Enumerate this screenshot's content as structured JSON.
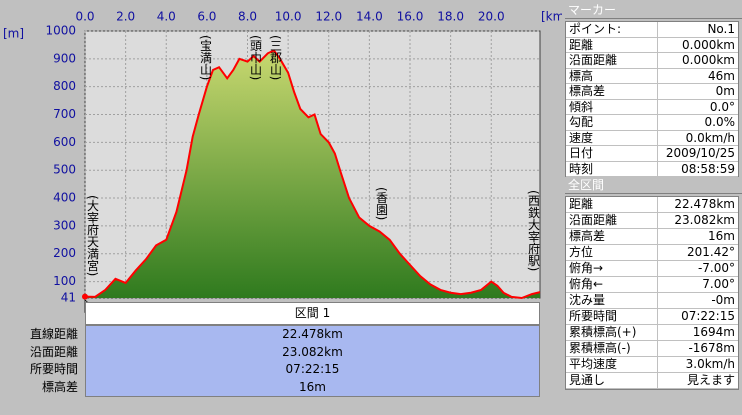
{
  "chart_data": {
    "type": "area",
    "x_unit": "[km]",
    "y_unit": "[m]",
    "x": [
      0,
      0.5,
      1,
      1.5,
      2,
      2.5,
      3,
      3.5,
      4,
      4.5,
      5,
      5.3,
      5.6,
      6,
      6.3,
      6.6,
      7,
      7.3,
      7.6,
      8,
      8.3,
      8.6,
      9,
      9.3,
      9.6,
      10,
      10.3,
      10.6,
      11,
      11.3,
      11.6,
      12,
      12.3,
      12.6,
      13,
      13.5,
      14,
      14.5,
      15,
      15.5,
      16,
      16.5,
      17,
      17.5,
      18,
      18.5,
      19,
      19.5,
      20,
      20.3,
      20.6,
      21,
      21.5,
      22,
      22.4
    ],
    "values": [
      46,
      45,
      70,
      110,
      95,
      140,
      180,
      230,
      250,
      350,
      500,
      620,
      700,
      800,
      860,
      870,
      830,
      860,
      900,
      890,
      910,
      890,
      920,
      930,
      900,
      850,
      780,
      720,
      690,
      700,
      630,
      600,
      560,
      490,
      400,
      330,
      300,
      280,
      250,
      200,
      160,
      120,
      90,
      70,
      60,
      55,
      60,
      70,
      100,
      85,
      60,
      45,
      41,
      55,
      62
    ],
    "xlim": [
      0,
      22.4
    ],
    "ylim": [
      41,
      1000
    ],
    "xticks": [
      {
        "value": 0,
        "label": "0.0"
      },
      {
        "value": 2,
        "label": "2.0"
      },
      {
        "value": 4,
        "label": "4.0"
      },
      {
        "value": 6,
        "label": "6.0"
      },
      {
        "value": 8,
        "label": "8.0"
      },
      {
        "value": 10,
        "label": "10.0"
      },
      {
        "value": 12,
        "label": "12.0"
      },
      {
        "value": 14,
        "label": "14.0"
      },
      {
        "value": 16,
        "label": "16.0"
      },
      {
        "value": 18,
        "label": "18.0"
      },
      {
        "value": 20,
        "label": "20.0"
      }
    ],
    "yticks": [
      41,
      100,
      200,
      300,
      400,
      500,
      600,
      700,
      800,
      900,
      1000
    ],
    "color": "#ff0000",
    "grid": true,
    "annotations": [
      "(宝満山)",
      "(頭巾山)",
      "(三郡山)",
      "(大宰府天満宮)",
      "(香園)",
      "(西鉄大宰府駅)"
    ]
  },
  "section_table": {
    "title": "区間 1",
    "rows": [
      [
        "直線距離",
        "22.478km"
      ],
      [
        "沿面距離",
        "23.082km"
      ],
      [
        "所要時間",
        "07:22:15"
      ],
      [
        "標高差",
        "16m"
      ]
    ]
  },
  "marker_panel": {
    "title": "マーカー",
    "rows": [
      [
        "ポイント:",
        "No.1"
      ],
      [
        "距離",
        "0.000km"
      ],
      [
        "沿面距離",
        "0.000km"
      ],
      [
        "標高",
        "46m"
      ],
      [
        "標高差",
        "0m"
      ],
      [
        "傾斜",
        "0.0°"
      ],
      [
        "勾配",
        "0.0%"
      ],
      [
        "速度",
        "0.0km/h"
      ],
      [
        "日付",
        "2009/10/25"
      ],
      [
        "時刻",
        "08:58:59"
      ]
    ]
  },
  "summary_panel": {
    "title": "全区間",
    "rows": [
      [
        "距離",
        "22.478km"
      ],
      [
        "沿面距離",
        "23.082km"
      ],
      [
        "標高差",
        "16m"
      ],
      [
        "方位",
        "201.42°"
      ],
      [
        "俯角→",
        "-7.00°"
      ],
      [
        "俯角←",
        "7.00°"
      ],
      [
        "沈み量",
        "-0m"
      ],
      [
        "所要時間",
        "07:22:15"
      ],
      [
        "累積標高(+)",
        "1694m"
      ],
      [
        "累積標高(-)",
        "-1678m"
      ],
      [
        "平均速度",
        "3.0km/h"
      ],
      [
        "見通し",
        "見えます"
      ]
    ]
  }
}
